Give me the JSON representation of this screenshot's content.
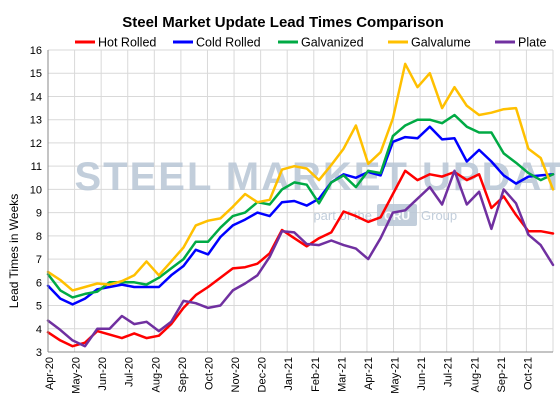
{
  "chart_data": {
    "type": "line",
    "title": "Steel Market Update Lead Times Comparison",
    "ylabel": "Lead Times in Weeks",
    "xlabel": "",
    "ylim": [
      3,
      16
    ],
    "yticks": [
      3,
      4,
      5,
      6,
      7,
      8,
      9,
      10,
      11,
      12,
      13,
      14,
      15,
      16
    ],
    "grid": true,
    "legend_position": "top",
    "x_tick_labels": [
      "Apr-20",
      "May-20",
      "Jun-20",
      "Jul-20",
      "Aug-20",
      "Sep-20",
      "Oct-20",
      "Nov-20",
      "Dec-20",
      "Jan-21",
      "Feb-21",
      "Mar-21",
      "Apr-21",
      "May-21",
      "Jun-21",
      "Jul-21",
      "Aug-21",
      "Sep-21",
      "Oct-21"
    ],
    "watermark": {
      "main": "STEEL MARKET UPDATE",
      "sub": "part of the",
      "badge": "CRU",
      "suffix": "Group"
    },
    "series": [
      {
        "name": "Hot Rolled",
        "color": "#ff0000",
        "values": [
          3.85,
          3.5,
          3.25,
          3.4,
          3.9,
          3.75,
          3.6,
          3.8,
          3.6,
          3.7,
          4.2,
          4.9,
          5.45,
          5.8,
          6.2,
          6.6,
          6.65,
          6.8,
          7.25,
          8.25,
          7.9,
          7.55,
          7.9,
          8.15,
          9.05,
          8.85,
          8.6,
          8.8,
          9.8,
          10.8,
          10.4,
          10.65,
          10.55,
          10.75,
          10.4,
          10.65,
          9.2,
          9.7,
          8.9,
          8.2,
          8.2,
          8.1
        ]
      },
      {
        "name": "Cold Rolled",
        "color": "#0000ff",
        "values": [
          5.85,
          5.3,
          5.05,
          5.3,
          5.7,
          5.8,
          5.9,
          5.8,
          5.8,
          5.8,
          6.3,
          6.7,
          7.4,
          7.2,
          7.95,
          8.45,
          8.7,
          9.0,
          8.85,
          9.45,
          9.5,
          9.3,
          9.6,
          10.3,
          10.65,
          10.5,
          10.75,
          10.6,
          12.05,
          12.25,
          12.2,
          12.7,
          12.15,
          12.2,
          11.2,
          11.7,
          11.2,
          10.6,
          10.25,
          10.55,
          10.6,
          10.65
        ]
      },
      {
        "name": "Galvanized",
        "color": "#00aa44",
        "values": [
          6.35,
          5.65,
          5.35,
          5.5,
          5.6,
          6.0,
          6.0,
          6.0,
          5.9,
          6.2,
          6.6,
          7.0,
          7.75,
          7.75,
          8.35,
          8.85,
          9.0,
          9.45,
          9.35,
          10.0,
          10.3,
          10.2,
          9.4,
          10.3,
          10.6,
          10.1,
          10.8,
          10.7,
          12.3,
          12.75,
          13.0,
          13.0,
          12.85,
          13.2,
          12.7,
          12.45,
          12.45,
          11.55,
          11.15,
          10.7,
          10.4,
          10.65
        ]
      },
      {
        "name": "Galvalume",
        "color": "#ffc000",
        "values": [
          6.45,
          6.1,
          5.65,
          5.8,
          5.95,
          5.9,
          6.05,
          6.3,
          6.9,
          6.3,
          6.9,
          7.5,
          8.45,
          8.65,
          8.75,
          9.25,
          9.8,
          9.45,
          9.55,
          10.85,
          11.0,
          10.9,
          10.4,
          11.05,
          11.75,
          12.75,
          11.1,
          11.6,
          13.05,
          15.4,
          14.4,
          15.0,
          13.5,
          14.4,
          13.6,
          13.2,
          13.3,
          13.45,
          13.5,
          11.75,
          11.35,
          10.0
        ]
      },
      {
        "name": "Plate",
        "color": "#7030a0",
        "values": [
          4.35,
          3.95,
          3.5,
          3.25,
          4.0,
          4.0,
          4.55,
          4.2,
          4.3,
          3.9,
          4.3,
          5.2,
          5.1,
          4.9,
          5.0,
          5.65,
          5.95,
          6.3,
          7.1,
          8.2,
          8.15,
          7.65,
          7.6,
          7.8,
          7.6,
          7.45,
          7.0,
          7.9,
          9.0,
          9.1,
          9.6,
          10.1,
          9.35,
          10.8,
          9.35,
          9.9,
          8.3,
          10.0,
          9.4,
          8.05,
          7.6,
          6.75
        ]
      }
    ]
  }
}
